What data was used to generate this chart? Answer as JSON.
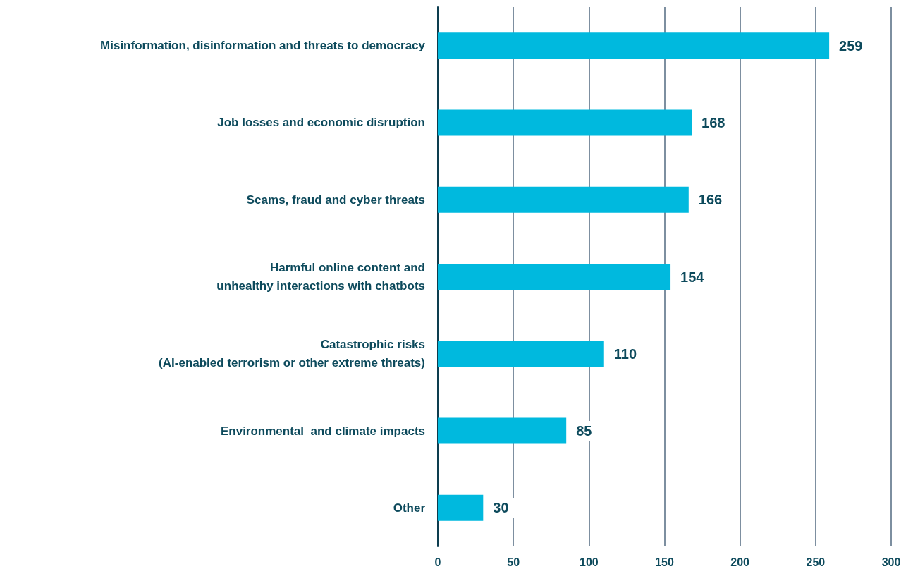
{
  "chart_data": {
    "type": "bar",
    "orientation": "horizontal",
    "categories": [
      "Misinformation, disinformation and threats to democracy",
      "Job losses and economic disruption",
      "Scams, fraud and cyber threats",
      "Harmful online content and\nunhealthy interactions with chatbots",
      "Catastrophic risks\n(AI-enabled terrorism or other extreme threats)",
      "Environmental  and climate impacts",
      "Other"
    ],
    "values": [
      259,
      168,
      166,
      154,
      110,
      85,
      30
    ],
    "color": "#00b9de",
    "xlim": [
      0,
      300
    ],
    "xticks": [
      0,
      50,
      100,
      150,
      200,
      250,
      300
    ],
    "grid": "x",
    "data_labels": true
  }
}
